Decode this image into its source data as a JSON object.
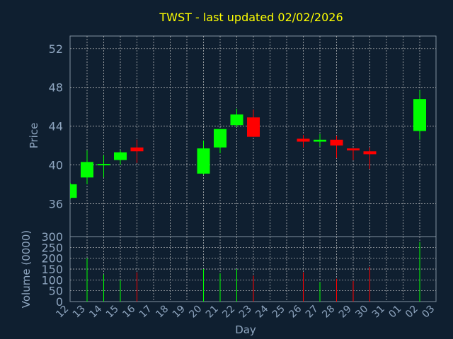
{
  "chart_data": {
    "type": "candlestick",
    "title": "TWST - last updated 02/02/2026",
    "xlabel": "Day",
    "price_panel": {
      "ylabel": "Price",
      "ylim": [
        32.6,
        53.3
      ],
      "yticks": [
        36,
        40,
        44,
        48,
        52
      ],
      "grid": true
    },
    "volume_panel": {
      "ylabel": "Volume (0000)",
      "ylim": [
        0,
        300
      ],
      "yticks": [
        0,
        50,
        100,
        150,
        200,
        250,
        300
      ],
      "grid": true
    },
    "x_tick_labels": [
      "12",
      "13",
      "14",
      "15",
      "16",
      "17",
      "18",
      "19",
      "20",
      "21",
      "22",
      "23",
      "24",
      "25",
      "26",
      "27",
      "28",
      "29",
      "30",
      "31",
      "01",
      "02",
      "03"
    ],
    "candles": [
      {
        "day": "12",
        "open": 36.6,
        "high": 38.1,
        "low": 36.5,
        "close": 38.0,
        "volume": 0
      },
      {
        "day": "13",
        "open": 38.7,
        "high": 41.5,
        "low": 38.0,
        "close": 40.3,
        "volume": 200
      },
      {
        "day": "14",
        "open": 40.0,
        "high": 41.0,
        "low": 38.7,
        "close": 40.1,
        "volume": 125
      },
      {
        "day": "15",
        "open": 40.5,
        "high": 41.5,
        "low": 40.0,
        "close": 41.3,
        "volume": 100
      },
      {
        "day": "16",
        "open": 41.8,
        "high": 42.6,
        "low": 40.2,
        "close": 41.4,
        "volume": 135
      },
      {
        "day": "20",
        "open": 39.1,
        "high": 42.5,
        "low": 39.0,
        "close": 41.7,
        "volume": 150
      },
      {
        "day": "21",
        "open": 41.8,
        "high": 43.7,
        "low": 41.2,
        "close": 43.7,
        "volume": 130
      },
      {
        "day": "22",
        "open": 44.1,
        "high": 45.8,
        "low": 43.9,
        "close": 45.2,
        "volume": 150
      },
      {
        "day": "23",
        "open": 44.9,
        "high": 45.7,
        "low": 42.9,
        "close": 42.9,
        "volume": 120
      },
      {
        "day": "26",
        "open": 42.7,
        "high": 43.1,
        "low": 41.8,
        "close": 42.4,
        "volume": 135
      },
      {
        "day": "27",
        "open": 42.4,
        "high": 43.2,
        "low": 41.9,
        "close": 42.6,
        "volume": 90
      },
      {
        "day": "28",
        "open": 42.6,
        "high": 43.0,
        "low": 40.7,
        "close": 42.0,
        "volume": 105
      },
      {
        "day": "29",
        "open": 41.7,
        "high": 41.7,
        "low": 40.5,
        "close": 41.5,
        "volume": 95
      },
      {
        "day": "30",
        "open": 41.4,
        "high": 41.8,
        "low": 39.6,
        "close": 41.1,
        "volume": 160
      },
      {
        "day": "02",
        "open": 43.5,
        "high": 47.7,
        "low": 42.6,
        "close": 46.8,
        "volume": 275
      }
    ]
  },
  "colors": {
    "background": "#0f1f30",
    "title": "#ffff00",
    "axis_text": "#8fa6c0",
    "axis_line": "#8090a0",
    "grid": "#c8c8c8",
    "up": "#00ff00",
    "down": "#ff0000"
  }
}
